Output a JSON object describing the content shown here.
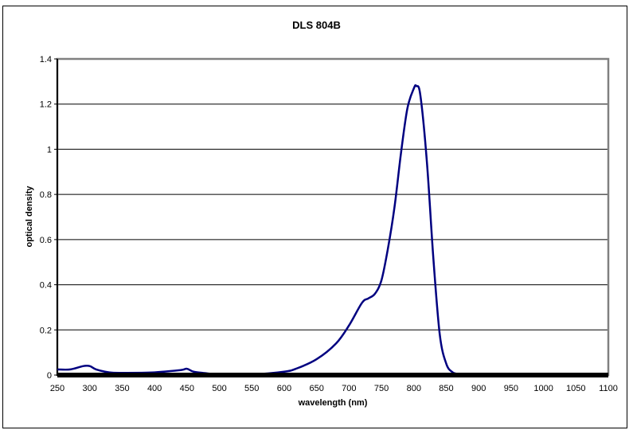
{
  "chart_data": {
    "type": "line",
    "title": "DLS 804B",
    "xlabel": "wavelength (nm)",
    "ylabel": "optical density",
    "xlim": [
      250,
      1100
    ],
    "ylim": [
      0,
      1.4
    ],
    "x_ticks": [
      "250",
      "300",
      "350",
      "400",
      "450",
      "500",
      "550",
      "600",
      "650",
      "700",
      "750",
      "800",
      "850",
      "900",
      "950",
      "1000",
      "1050",
      "1100"
    ],
    "y_ticks": [
      "0",
      "0.2",
      "0.4",
      "0.6",
      "0.8",
      "1",
      "1.2",
      "1.4"
    ],
    "grid": "horizontal",
    "legend": "none",
    "series": [
      {
        "name": "DLS 804B",
        "color": "#000080",
        "x": [
          250,
          270,
          290,
          300,
          310,
          330,
          350,
          400,
          440,
          450,
          460,
          480,
          500,
          550,
          600,
          620,
          650,
          680,
          700,
          720,
          730,
          740,
          750,
          760,
          770,
          780,
          790,
          800,
          804,
          810,
          820,
          830,
          840,
          850,
          860,
          870,
          880,
          900,
          1000,
          1100
        ],
        "y": [
          0.025,
          0.025,
          0.04,
          0.04,
          0.025,
          0.012,
          0.01,
          0.012,
          0.022,
          0.028,
          0.015,
          0.008,
          0.003,
          0.003,
          0.015,
          0.03,
          0.07,
          0.14,
          0.22,
          0.32,
          0.34,
          0.36,
          0.42,
          0.56,
          0.74,
          0.98,
          1.18,
          1.27,
          1.28,
          1.24,
          0.95,
          0.52,
          0.18,
          0.05,
          0.012,
          0.005,
          0.003,
          0.002,
          0.002,
          0.002
        ]
      }
    ]
  },
  "colors": {
    "line": "#000080",
    "plot_border": "#808080",
    "grid": "#000000"
  }
}
